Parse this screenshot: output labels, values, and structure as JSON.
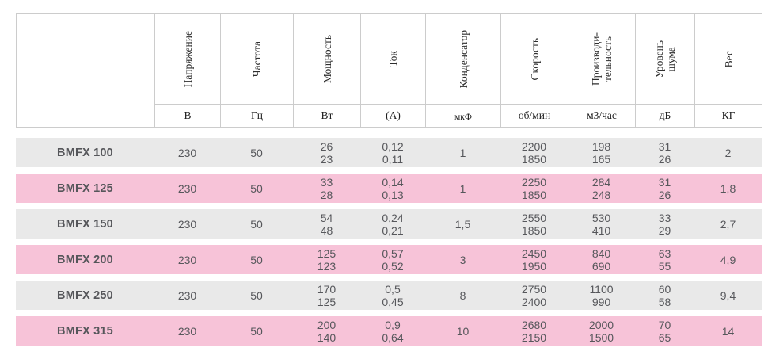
{
  "table": {
    "columns": [
      {
        "id": "voltage",
        "name": "Напряжение",
        "unit": "В"
      },
      {
        "id": "frequency",
        "name": "Частота",
        "unit": "Гц"
      },
      {
        "id": "power",
        "name": "Мощность",
        "unit": "Вт"
      },
      {
        "id": "current",
        "name": "Ток",
        "unit": "(А)"
      },
      {
        "id": "capacitor",
        "name": "Конденсатор",
        "unit": "мкФ",
        "small_unit": true
      },
      {
        "id": "speed",
        "name": "Скорость",
        "unit": "об/мин"
      },
      {
        "id": "airflow",
        "name": "Производи-\nтельность",
        "unit": "м3/час"
      },
      {
        "id": "noise",
        "name": "Уровень\nшума",
        "unit": "дБ"
      },
      {
        "id": "weight",
        "name": "Вес",
        "unit": "КГ"
      }
    ],
    "rows": [
      {
        "model": "BMFX 100",
        "values": [
          "230",
          "50",
          "26\n23",
          "0,12\n0,11",
          "1",
          "2200\n1850",
          "198\n165",
          "31\n26",
          "2"
        ]
      },
      {
        "model": "BMFX 125",
        "values": [
          "230",
          "50",
          "33\n28",
          "0,14\n0,13",
          "1",
          "2250\n1850",
          "284\n248",
          "31\n26",
          "1,8"
        ]
      },
      {
        "model": "BMFX 150",
        "values": [
          "230",
          "50",
          "54\n48",
          "0,24\n0,21",
          "1,5",
          "2550\n1850",
          "530\n410",
          "33\n29",
          "2,7"
        ]
      },
      {
        "model": "BMFX 200",
        "values": [
          "230",
          "50",
          "125\n123",
          "0,57\n0,52",
          "3",
          "2450\n1950",
          "840\n690",
          "63\n55",
          "4,9"
        ]
      },
      {
        "model": "BMFX 250",
        "values": [
          "230",
          "50",
          "170\n125",
          "0,5\n0,45",
          "8",
          "2750\n2400",
          "1100\n990",
          "60\n58",
          "9,4"
        ]
      },
      {
        "model": "BMFX 315",
        "values": [
          "230",
          "50",
          "200\n140",
          "0,9\n0,64",
          "10",
          "2680\n2150",
          "2000\n1500",
          "70\n65",
          "14"
        ]
      }
    ]
  },
  "colors": {
    "row_gray": "#E9E9E9",
    "row_pink": "#F7C3D8",
    "header_border": "#CCCCCC",
    "data_text": "#56575B",
    "header_text": "#2E2E2E"
  }
}
